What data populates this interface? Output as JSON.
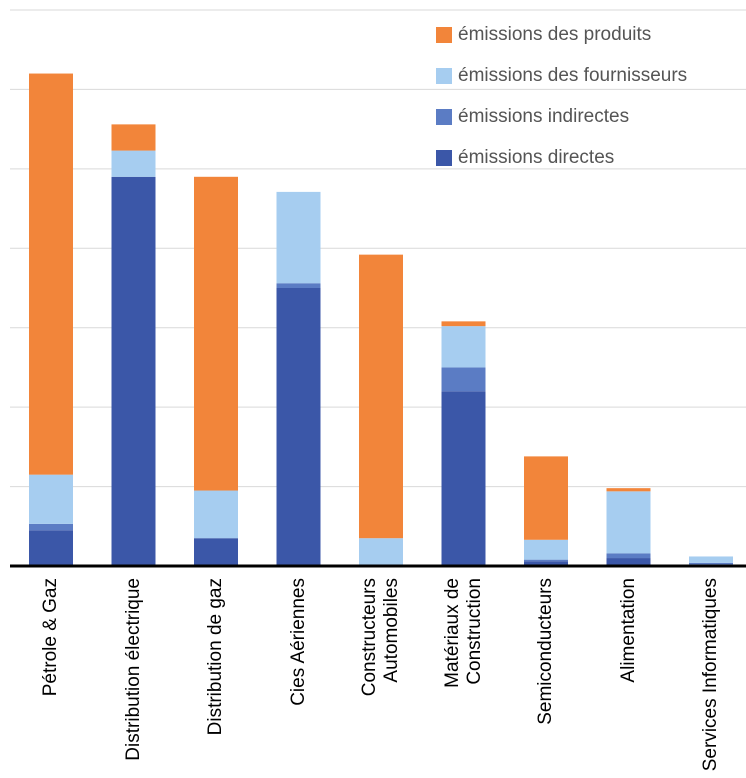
{
  "chart_data": {
    "type": "bar",
    "stacked": true,
    "categories": [
      "Pétrole & Gaz",
      "Distribution électrique",
      "Distribution de gaz",
      "Cies  Aériennes",
      "Constructeurs Automobiles",
      "Matériaux de Construction",
      "Semiconducteurs",
      "Alimentation",
      "Services Informatiques"
    ],
    "series": [
      {
        "name": "émissions directes",
        "color": "#3b57a8",
        "values": [
          0.45,
          4.9,
          0.35,
          3.5,
          0.0,
          2.2,
          0.06,
          0.1,
          0.02
        ]
      },
      {
        "name": "émissions indirectes",
        "color": "#5b7cc4",
        "values": [
          0.08,
          0.0,
          0.0,
          0.06,
          0.0,
          0.3,
          0.02,
          0.06,
          0.02
        ]
      },
      {
        "name": "émissions des fournisseurs",
        "color": "#a6cdf0",
        "values": [
          0.62,
          0.33,
          0.6,
          1.15,
          0.35,
          0.52,
          0.25,
          0.78,
          0.08
        ]
      },
      {
        "name": "émissions des produits",
        "color": "#f2853a",
        "values": [
          5.05,
          0.33,
          3.95,
          0.0,
          3.57,
          0.06,
          1.05,
          0.04,
          0.0
        ]
      }
    ],
    "legend_order": [
      "émissions des produits",
      "émissions des fournisseurs",
      "émissions indirectes",
      "émissions directes"
    ],
    "legend_position": "top-right",
    "ylim": [
      0,
      7
    ],
    "y_gridlines": true,
    "y_tick_labels_visible": false
  }
}
